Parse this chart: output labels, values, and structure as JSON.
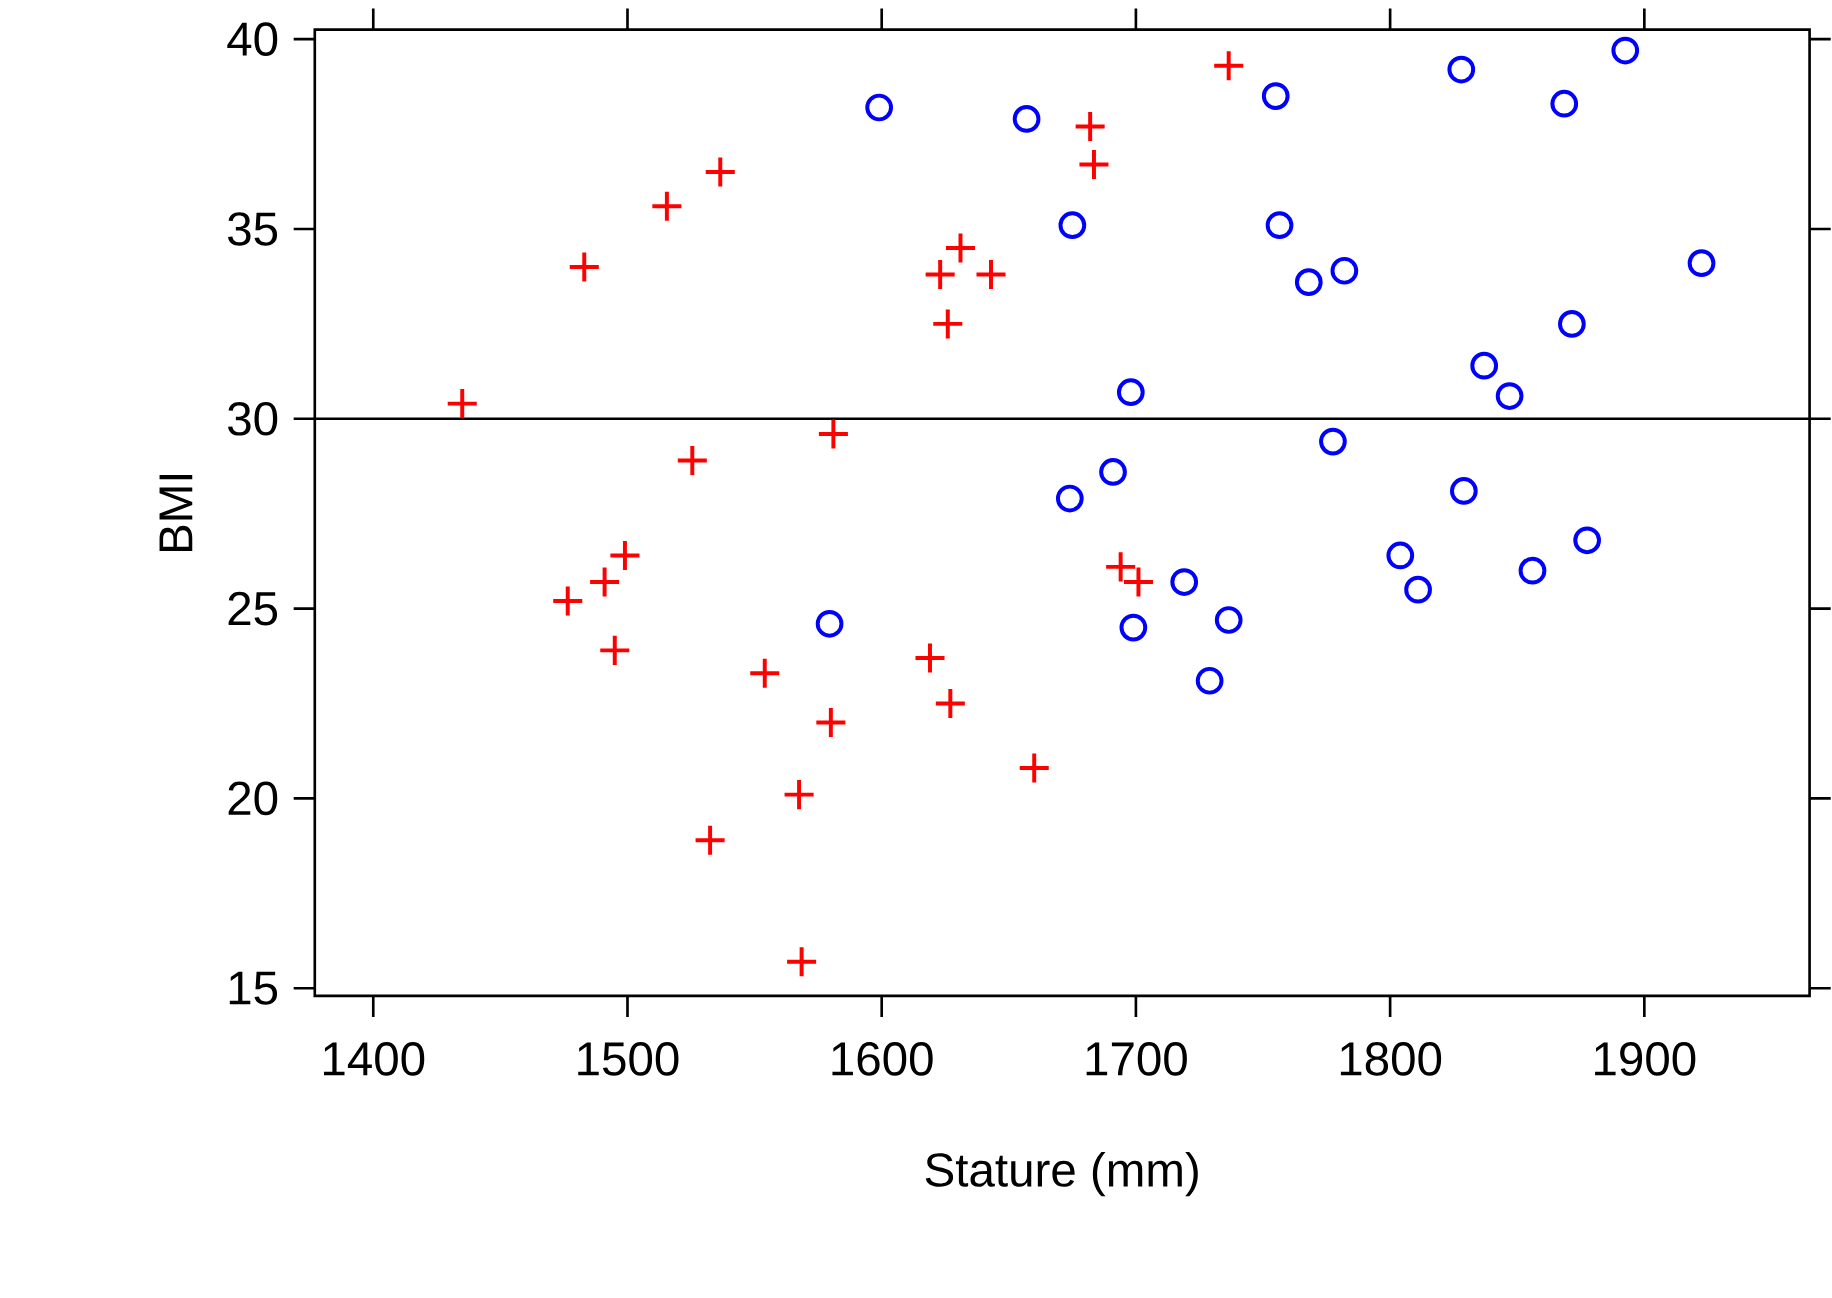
{
  "chart_data": {
    "type": "scatter",
    "xlabel": "Stature (mm)",
    "ylabel": "BMI",
    "xlim": [
      1377,
      1965
    ],
    "ylim": [
      14.8,
      40.25
    ],
    "xticks": [
      1400,
      1500,
      1600,
      1700,
      1800,
      1900
    ],
    "yticks": [
      15,
      20,
      25,
      30,
      35,
      40
    ],
    "ref_lines": [
      {
        "axis": "y",
        "value": 30,
        "color": "#000000"
      }
    ],
    "series": [
      {
        "color": "#ff0000",
        "marker": "cross",
        "x": [
          1435,
          1483,
          1515.5,
          1536.5,
          1623,
          1631,
          1643,
          1626,
          1525.5,
          1581,
          1499,
          1491,
          1476.5,
          1495,
          1554,
          1619,
          1627,
          1580,
          1660,
          1567.5,
          1532.5,
          1568.5,
          1736.5,
          1682,
          1683.5,
          1694,
          1701
        ],
        "values": [
          30.4,
          34.0,
          35.6,
          36.5,
          33.8,
          34.5,
          33.8,
          32.5,
          28.9,
          29.6,
          26.4,
          25.7,
          25.2,
          23.9,
          23.3,
          23.7,
          22.5,
          22.0,
          20.8,
          20.1,
          18.9,
          15.7,
          39.3,
          37.7,
          36.7,
          26.1,
          25.7
        ]
      },
      {
        "color": "#0000ff",
        "marker": "circle",
        "x": [
          1599,
          1657,
          1675,
          1674,
          1579.5,
          1755,
          1828,
          1868.5,
          1892.5,
          1756.5,
          1768,
          1782,
          1922.5,
          1871.5,
          1837,
          1847,
          1698,
          1777.5,
          1691,
          1829,
          1719,
          1699,
          1736.5,
          1729,
          1804,
          1811,
          1856,
          1877.5
        ],
        "values": [
          38.2,
          37.9,
          35.1,
          27.9,
          24.6,
          38.5,
          39.2,
          38.3,
          39.7,
          35.1,
          33.6,
          33.9,
          34.1,
          32.5,
          31.4,
          30.6,
          30.7,
          29.4,
          28.6,
          28.1,
          25.7,
          24.5,
          24.7,
          23.1,
          26.4,
          25.5,
          26.0,
          26.8
        ]
      }
    ]
  }
}
